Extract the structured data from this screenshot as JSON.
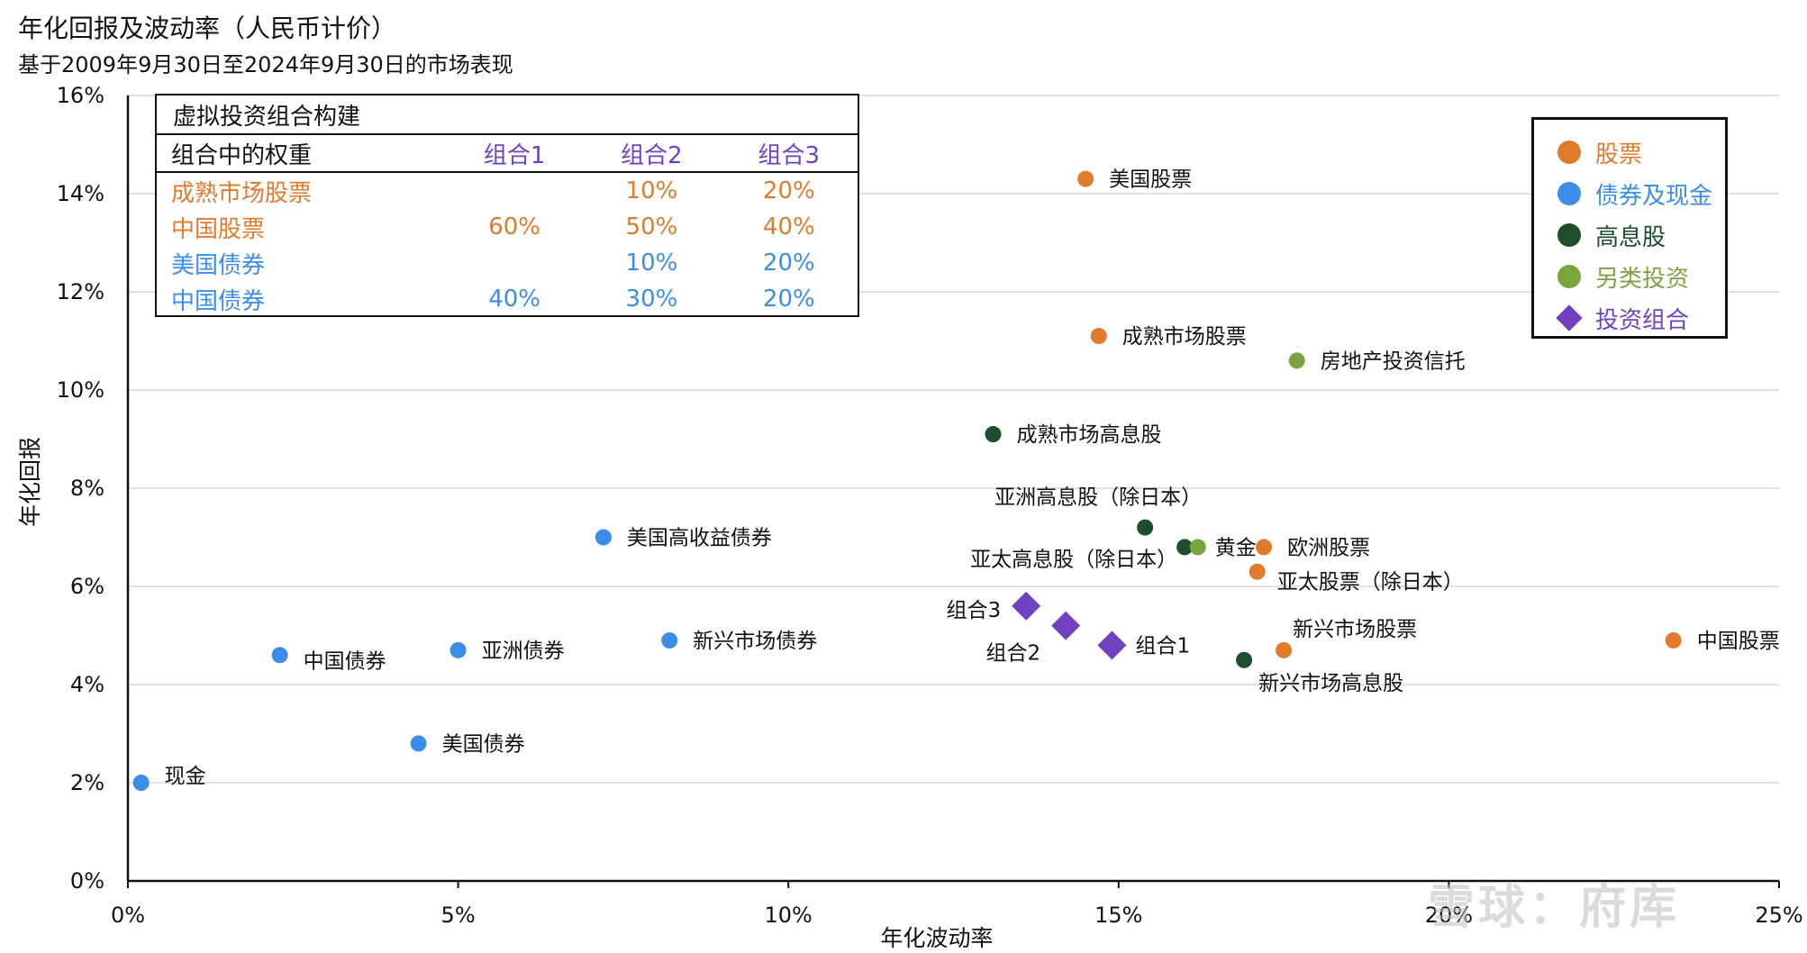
{
  "header": {
    "title": "年化回报及波动率（人民币计价）",
    "subtitle": "基于2009年9月30日至2024年9月30日的市场表现"
  },
  "chart_data": {
    "type": "scatter",
    "xlabel": "年化波动率",
    "ylabel": "年化回报",
    "xlim": [
      0,
      25
    ],
    "ylim": [
      0,
      16
    ],
    "x_ticks": [
      "0%",
      "5%",
      "10%",
      "15%",
      "20%",
      "25%"
    ],
    "y_ticks": [
      "0%",
      "2%",
      "4%",
      "6%",
      "8%",
      "10%",
      "12%",
      "14%",
      "16%"
    ],
    "grid": "horizontal",
    "legend_position": "top-right",
    "categories": [
      {
        "key": "equity",
        "name": "股票",
        "color": "#E07B2E",
        "marker": "circle"
      },
      {
        "key": "bond",
        "name": "债券及现金",
        "color": "#3C8DE8",
        "marker": "circle"
      },
      {
        "key": "dividend",
        "name": "高息股",
        "color": "#1E4D2B",
        "marker": "circle"
      },
      {
        "key": "alt",
        "name": "另类投资",
        "color": "#79A440",
        "marker": "circle"
      },
      {
        "key": "portfolio",
        "name": "投资组合",
        "color": "#6F42C1",
        "marker": "diamond"
      }
    ],
    "points": [
      {
        "label": "美国股票",
        "x": 14.5,
        "y": 14.3,
        "category": "equity",
        "anchor": "right"
      },
      {
        "label": "成熟市场股票",
        "x": 14.7,
        "y": 11.1,
        "category": "equity",
        "anchor": "right"
      },
      {
        "label": "欧洲股票",
        "x": 17.2,
        "y": 6.8,
        "category": "equity",
        "anchor": "right"
      },
      {
        "label": "亚太股票（除日本）",
        "x": 17.1,
        "y": 6.3,
        "category": "equity",
        "anchor": "right-below"
      },
      {
        "label": "新兴市场股票",
        "x": 17.5,
        "y": 4.7,
        "category": "equity",
        "anchor": "above-right"
      },
      {
        "label": "中国股票",
        "x": 23.4,
        "y": 4.9,
        "category": "equity",
        "anchor": "right"
      },
      {
        "label": "美国高收益债券",
        "x": 7.2,
        "y": 7.0,
        "category": "bond",
        "anchor": "right"
      },
      {
        "label": "新兴市场债券",
        "x": 8.2,
        "y": 4.9,
        "category": "bond",
        "anchor": "right"
      },
      {
        "label": "亚洲债券",
        "x": 5.0,
        "y": 4.7,
        "category": "bond",
        "anchor": "right"
      },
      {
        "label": "中国债券",
        "x": 2.3,
        "y": 4.6,
        "category": "bond",
        "anchor": "right-below"
      },
      {
        "label": "美国债券",
        "x": 4.4,
        "y": 2.8,
        "category": "bond",
        "anchor": "right"
      },
      {
        "label": "现金",
        "x": 0.2,
        "y": 2.0,
        "category": "bond",
        "anchor": "right-above"
      },
      {
        "label": "成熟市场高息股",
        "x": 13.1,
        "y": 9.1,
        "category": "dividend",
        "anchor": "right"
      },
      {
        "label": "亚洲高息股（除日本）",
        "x": 15.4,
        "y": 7.2,
        "category": "dividend",
        "anchor": "above"
      },
      {
        "label": "亚太高息股（除日本）",
        "x": 16.0,
        "y": 6.8,
        "category": "dividend",
        "anchor": "left-below"
      },
      {
        "label": "新兴市场高息股",
        "x": 16.9,
        "y": 4.5,
        "category": "dividend",
        "anchor": "below-right"
      },
      {
        "label": "黄金",
        "x": 16.2,
        "y": 6.8,
        "category": "alt",
        "anchor": "right"
      },
      {
        "label": "房地产投资信托",
        "x": 17.7,
        "y": 10.6,
        "category": "alt",
        "anchor": "right"
      },
      {
        "label": "组合1",
        "x": 14.9,
        "y": 4.8,
        "category": "portfolio",
        "anchor": "right"
      },
      {
        "label": "组合2",
        "x": 14.2,
        "y": 5.2,
        "category": "portfolio",
        "anchor": "left-below"
      },
      {
        "label": "组合3",
        "x": 13.6,
        "y": 5.6,
        "category": "portfolio",
        "anchor": "left"
      }
    ]
  },
  "inset_table": {
    "title": "虚拟投资组合构建",
    "header_label": "组合中的权重",
    "columns": [
      "组合1",
      "组合2",
      "组合3"
    ],
    "column_color": "#6F42C1",
    "rows": [
      {
        "label": "成熟市场股票",
        "values": [
          "",
          "10%",
          "20%"
        ],
        "color": "#E07B2E"
      },
      {
        "label": "中国股票",
        "values": [
          "60%",
          "50%",
          "40%"
        ],
        "color": "#E07B2E"
      },
      {
        "label": "美国债券",
        "values": [
          "",
          "10%",
          "20%"
        ],
        "color": "#3C8DE8"
      },
      {
        "label": "中国债券",
        "values": [
          "40%",
          "30%",
          "20%"
        ],
        "color": "#3C8DE8"
      }
    ]
  },
  "watermark": "雪球：府库"
}
